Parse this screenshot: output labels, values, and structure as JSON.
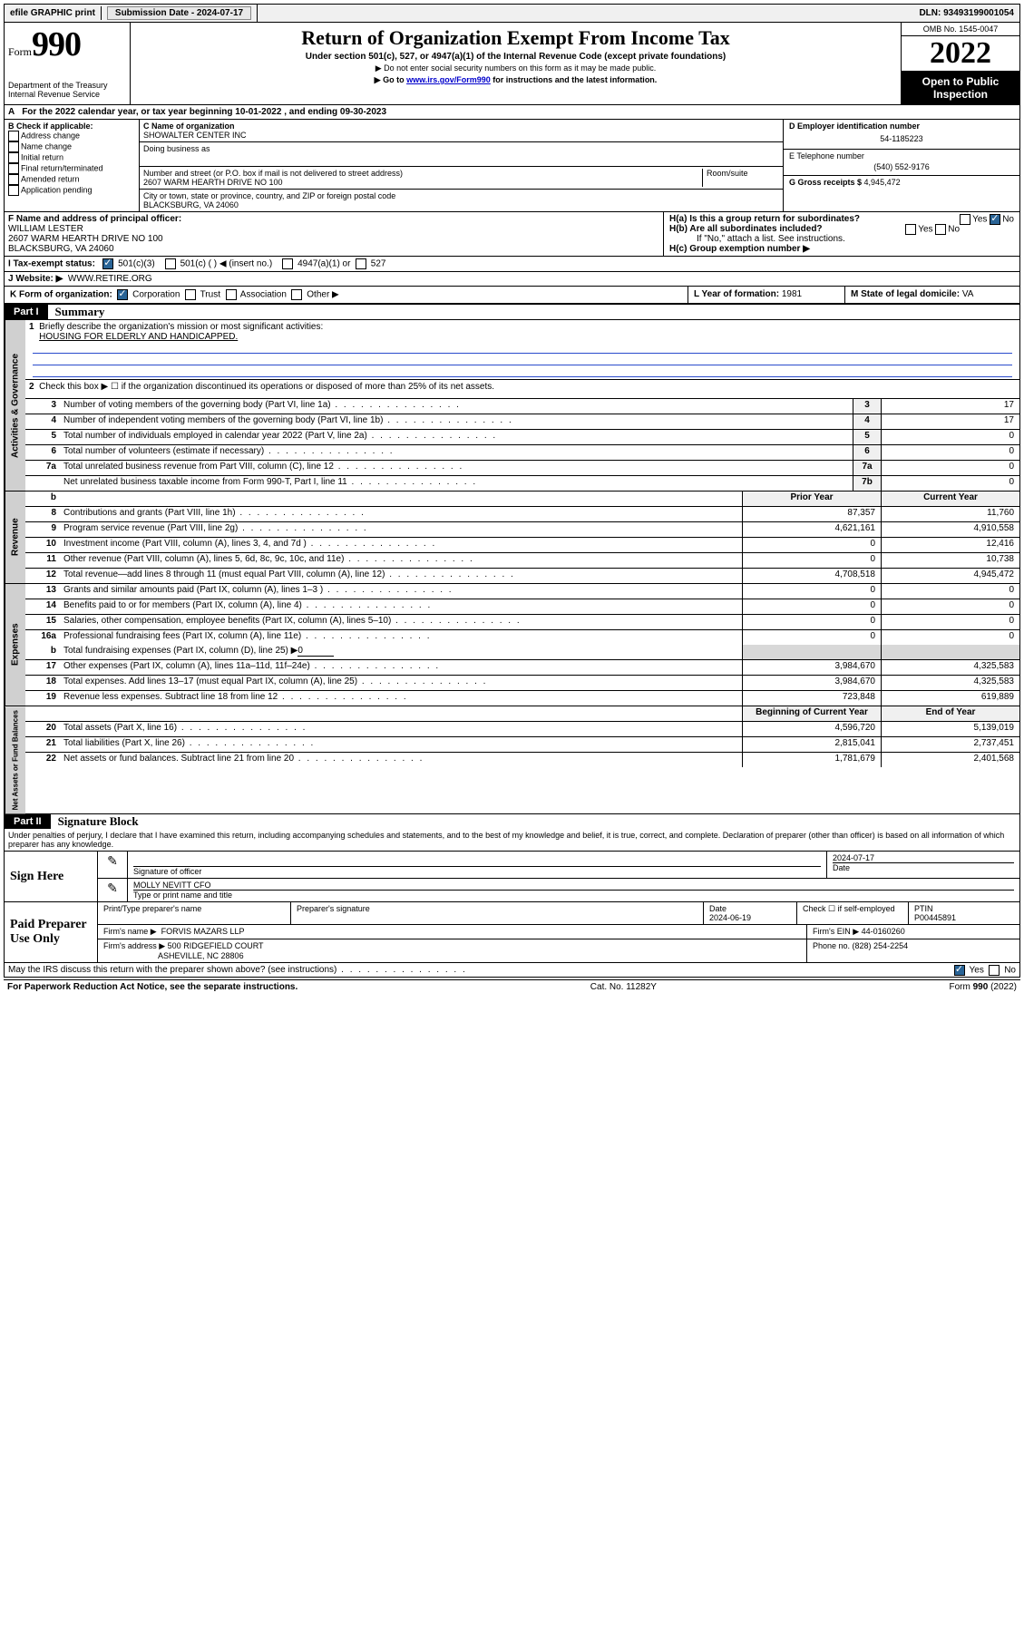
{
  "topbar": {
    "efile": "efile GRAPHIC print",
    "sub_label": "Submission Date - ",
    "sub_date": "2024-07-17",
    "dln_label": "DLN: ",
    "dln": "93493199001054"
  },
  "header": {
    "form_prefix": "Form",
    "form_num": "990",
    "dept": "Department of the Treasury",
    "irs": "Internal Revenue Service",
    "title": "Return of Organization Exempt From Income Tax",
    "sub1": "Under section 501(c), 527, or 4947(a)(1) of the Internal Revenue Code (except private foundations)",
    "sub2": "▶ Do not enter social security numbers on this form as it may be made public.",
    "sub3_pre": "▶ Go to ",
    "sub3_link": "www.irs.gov/Form990",
    "sub3_post": " for instructions and the latest information.",
    "omb": "OMB No. 1545-0047",
    "year": "2022",
    "open": "Open to Public Inspection"
  },
  "row_a": "For the 2022 calendar year, or tax year beginning 10-01-2022   , and ending 09-30-2023",
  "box_b": {
    "title": "B Check if applicable:",
    "opts": [
      "Address change",
      "Name change",
      "Initial return",
      "Final return/terminated",
      "Amended return",
      "Application pending"
    ]
  },
  "box_c": {
    "name_label": "C Name of organization",
    "name": "SHOWALTER CENTER INC",
    "dba_label": "Doing business as",
    "addr_label": "Number and street (or P.O. box if mail is not delivered to street address)",
    "room_label": "Room/suite",
    "addr": "2607 WARM HEARTH DRIVE NO 100",
    "city_label": "City or town, state or province, country, and ZIP or foreign postal code",
    "city": "BLACKSBURG, VA  24060"
  },
  "box_d": {
    "ein_label": "D Employer identification number",
    "ein": "54-1185223",
    "phone_label": "E Telephone number",
    "phone": "(540) 552-9176",
    "gross_label": "G Gross receipts $ ",
    "gross": "4,945,472"
  },
  "box_f": {
    "label": "F  Name and address of principal officer:",
    "name": "WILLIAM LESTER",
    "addr1": "2607 WARM HEARTH DRIVE NO 100",
    "addr2": "BLACKSBURG, VA  24060"
  },
  "box_h": {
    "ha": "H(a)  Is this a group return for subordinates?",
    "hb": "H(b)  Are all subordinates included?",
    "hb_note": "If \"No,\" attach a list. See instructions.",
    "hc": "H(c)  Group exemption number ▶",
    "yes": "Yes",
    "no": "No"
  },
  "row_i": {
    "label": "I    Tax-exempt status:",
    "o1": "501(c)(3)",
    "o2": "501(c) (  ) ◀ (insert no.)",
    "o3": "4947(a)(1) or",
    "o4": "527"
  },
  "row_j": {
    "label": "J    Website: ▶",
    "val": "WWW.RETIRE.ORG"
  },
  "row_k": {
    "label": "K Form of organization:",
    "opts": [
      "Corporation",
      "Trust",
      "Association",
      "Other ▶"
    ],
    "l_label": "L Year of formation: ",
    "l_val": "1981",
    "m_label": "M State of legal domicile: ",
    "m_val": "VA"
  },
  "part1": {
    "hdr": "Part I",
    "title": "Summary",
    "l1_label": "Briefly describe the organization's mission or most significant activities:",
    "l1_val": "HOUSING FOR ELDERLY AND HANDICAPPED.",
    "l2": "Check this box ▶ ☐  if the organization discontinued its operations or disposed of more than 25% of its net assets.",
    "rows_gov": [
      {
        "n": "3",
        "d": "Number of voting members of the governing body (Part VI, line 1a)",
        "b": "3",
        "v": "17"
      },
      {
        "n": "4",
        "d": "Number of independent voting members of the governing body (Part VI, line 1b)",
        "b": "4",
        "v": "17"
      },
      {
        "n": "5",
        "d": "Total number of individuals employed in calendar year 2022 (Part V, line 2a)",
        "b": "5",
        "v": "0"
      },
      {
        "n": "6",
        "d": "Total number of volunteers (estimate if necessary)",
        "b": "6",
        "v": "0"
      },
      {
        "n": "7a",
        "d": "Total unrelated business revenue from Part VIII, column (C), line 12",
        "b": "7a",
        "v": "0"
      },
      {
        "n": "",
        "d": "Net unrelated business taxable income from Form 990-T, Part I, line 11",
        "b": "7b",
        "v": "0"
      }
    ],
    "col_prior": "Prior Year",
    "col_curr": "Current Year",
    "rows_rev": [
      {
        "n": "8",
        "d": "Contributions and grants (Part VIII, line 1h)",
        "p": "87,357",
        "c": "11,760"
      },
      {
        "n": "9",
        "d": "Program service revenue (Part VIII, line 2g)",
        "p": "4,621,161",
        "c": "4,910,558"
      },
      {
        "n": "10",
        "d": "Investment income (Part VIII, column (A), lines 3, 4, and 7d )",
        "p": "0",
        "c": "12,416"
      },
      {
        "n": "11",
        "d": "Other revenue (Part VIII, column (A), lines 5, 6d, 8c, 9c, 10c, and 11e)",
        "p": "0",
        "c": "10,738"
      },
      {
        "n": "12",
        "d": "Total revenue—add lines 8 through 11 (must equal Part VIII, column (A), line 12)",
        "p": "4,708,518",
        "c": "4,945,472"
      }
    ],
    "rows_exp": [
      {
        "n": "13",
        "d": "Grants and similar amounts paid (Part IX, column (A), lines 1–3 )",
        "p": "0",
        "c": "0"
      },
      {
        "n": "14",
        "d": "Benefits paid to or for members (Part IX, column (A), line 4)",
        "p": "0",
        "c": "0"
      },
      {
        "n": "15",
        "d": "Salaries, other compensation, employee benefits (Part IX, column (A), lines 5–10)",
        "p": "0",
        "c": "0"
      },
      {
        "n": "16a",
        "d": "Professional fundraising fees (Part IX, column (A), line 11e)",
        "p": "0",
        "c": "0"
      }
    ],
    "row_16b": {
      "n": "b",
      "d": "Total fundraising expenses (Part IX, column (D), line 25) ▶",
      "v": "0"
    },
    "rows_exp2": [
      {
        "n": "17",
        "d": "Other expenses (Part IX, column (A), lines 11a–11d, 11f–24e)",
        "p": "3,984,670",
        "c": "4,325,583"
      },
      {
        "n": "18",
        "d": "Total expenses. Add lines 13–17 (must equal Part IX, column (A), line 25)",
        "p": "3,984,670",
        "c": "4,325,583"
      },
      {
        "n": "19",
        "d": "Revenue less expenses. Subtract line 18 from line 12",
        "p": "723,848",
        "c": "619,889"
      }
    ],
    "col_begin": "Beginning of Current Year",
    "col_end": "End of Year",
    "rows_net": [
      {
        "n": "20",
        "d": "Total assets (Part X, line 16)",
        "p": "4,596,720",
        "c": "5,139,019"
      },
      {
        "n": "21",
        "d": "Total liabilities (Part X, line 26)",
        "p": "2,815,041",
        "c": "2,737,451"
      },
      {
        "n": "22",
        "d": "Net assets or fund balances. Subtract line 21 from line 20",
        "p": "1,781,679",
        "c": "2,401,568"
      }
    ],
    "tab_gov": "Activities & Governance",
    "tab_rev": "Revenue",
    "tab_exp": "Expenses",
    "tab_net": "Net Assets or Fund Balances"
  },
  "part2": {
    "hdr": "Part II",
    "title": "Signature Block",
    "decl": "Under penalties of perjury, I declare that I have examined this return, including accompanying schedules and statements, and to the best of my knowledge and belief, it is true, correct, and complete. Declaration of preparer (other than officer) is based on all information of which preparer has any knowledge.",
    "sign_here": "Sign Here",
    "sig_officer": "Signature of officer",
    "sig_date": "Date",
    "sig_date_val": "2024-07-17",
    "sig_name": "MOLLY NEVITT  CFO",
    "sig_name_label": "Type or print name and title",
    "paid": "Paid Preparer Use Only",
    "prep_name_label": "Print/Type preparer's name",
    "prep_sig_label": "Preparer's signature",
    "prep_date_label": "Date",
    "prep_date": "2024-06-19",
    "check_self": "Check ☐ if self-employed",
    "ptin_label": "PTIN",
    "ptin": "P00445891",
    "firm_name_label": "Firm's name    ▶",
    "firm_name": "FORVIS MAZARS LLP",
    "firm_ein_label": "Firm's EIN ▶",
    "firm_ein": "44-0160260",
    "firm_addr_label": "Firm's address ▶",
    "firm_addr1": "500 RIDGEFIELD COURT",
    "firm_addr2": "ASHEVILLE, NC  28806",
    "firm_phone_label": "Phone no. ",
    "firm_phone": "(828) 254-2254",
    "may_irs": "May the IRS discuss this return with the preparer shown above? (see instructions)"
  },
  "footer": {
    "left": "For Paperwork Reduction Act Notice, see the separate instructions.",
    "mid": "Cat. No. 11282Y",
    "right": "Form 990 (2022)"
  }
}
